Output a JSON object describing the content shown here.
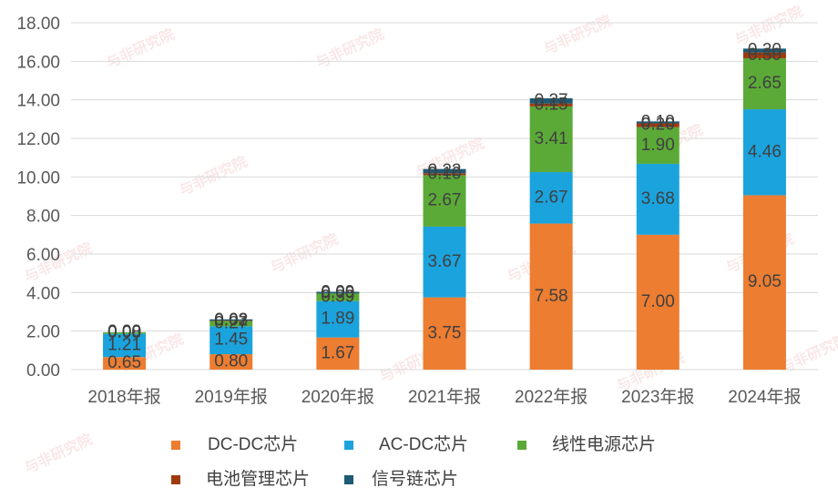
{
  "chart_data": {
    "type": "stacked-bar",
    "categories": [
      "2018年报",
      "2019年报",
      "2020年报",
      "2021年报",
      "2022年报",
      "2023年报",
      "2024年报"
    ],
    "series": [
      {
        "name": "DC-DC芯片",
        "color": "#ED7D31",
        "values": [
          0.65,
          0.8,
          1.67,
          3.75,
          7.58,
          7.0,
          9.05
        ],
        "labels": [
          "0.65",
          "0.80",
          "1.67",
          "3.75",
          "7.58",
          "7.00",
          "9.05"
        ]
      },
      {
        "name": "AC-DC芯片",
        "color": "#1AA3DD",
        "values": [
          1.21,
          1.45,
          1.89,
          3.67,
          2.67,
          3.68,
          4.46
        ],
        "labels": [
          "1.21",
          "1.45",
          "1.89",
          "3.67",
          "2.67",
          "3.68",
          "4.46"
        ]
      },
      {
        "name": "线性电源芯片",
        "color": "#5BAA37",
        "values": [
          0.08,
          0.27,
          0.39,
          2.67,
          3.41,
          1.9,
          2.65
        ],
        "labels": [
          "0.08",
          "0.27",
          "0.39",
          "2.67",
          "3.41",
          "1.90",
          "2.65"
        ]
      },
      {
        "name": "电池管理芯片",
        "color": "#9E3B0E",
        "values": [
          0.0,
          0.02,
          0.0,
          0.1,
          0.15,
          0.2,
          0.3
        ],
        "labels": [
          "0.00",
          "0.02",
          "0.00",
          "0.10",
          "0.15",
          "0.20",
          "0.30"
        ]
      },
      {
        "name": "信号链芯片",
        "color": "#1D5A73",
        "values": [
          0.0,
          0.03,
          0.09,
          0.22,
          0.27,
          0.1,
          0.2
        ],
        "labels": [
          "0.00",
          "0.03",
          "0.09",
          "0.22",
          "0.27",
          "0.10",
          "0.20"
        ]
      }
    ],
    "ylim": [
      0,
      18
    ],
    "yticks": [
      "0.00",
      "2.00",
      "4.00",
      "6.00",
      "8.00",
      "10.00",
      "12.00",
      "14.00",
      "16.00",
      "18.00"
    ],
    "ytick_values": [
      0,
      2,
      4,
      6,
      8,
      10,
      12,
      14,
      16,
      18
    ],
    "grid": true,
    "legend_position": "bottom"
  },
  "watermark": "与非研究院"
}
